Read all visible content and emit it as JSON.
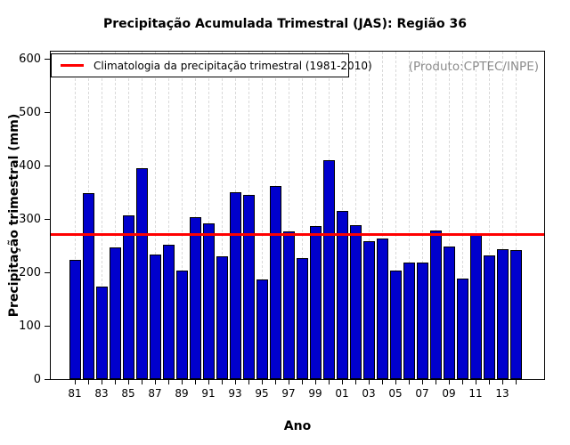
{
  "chart_data": {
    "type": "bar",
    "title": "Precipitação Acumulada Trimestral (JAS): Região 36",
    "xlabel": "Ano",
    "ylabel": "Precipitação trimestral (mm)",
    "annotation": "(Produto:CPTEC/INPE)",
    "legend": [
      {
        "label": "Climatologia da precipitação trimestral (1981-2010)",
        "color": "#ff0000"
      }
    ],
    "categories": [
      "81",
      "82",
      "83",
      "84",
      "85",
      "86",
      "87",
      "88",
      "89",
      "90",
      "91",
      "92",
      "93",
      "94",
      "95",
      "96",
      "97",
      "98",
      "99",
      "00",
      "01",
      "02",
      "03",
      "04",
      "05",
      "06",
      "07",
      "08",
      "09",
      "10",
      "11",
      "12",
      "13",
      "14"
    ],
    "values": [
      223,
      349,
      173,
      246,
      306,
      395,
      234,
      252,
      204,
      304,
      291,
      230,
      350,
      345,
      187,
      361,
      276,
      226,
      286,
      410,
      315,
      289,
      258,
      264,
      203,
      218,
      219,
      278,
      248,
      189,
      270,
      231,
      244,
      242
    ],
    "climatology_mm": 271,
    "ylim": [
      0,
      600
    ],
    "y_ticks": [
      0,
      100,
      200,
      300,
      400,
      500,
      600
    ],
    "x_tick_label_step": 2,
    "bar_color": "#0000cd",
    "bar_border_color": "#000000",
    "line_color": "#ff0000",
    "grid": "vertical-dashed",
    "grid_color": "#d9d9d9",
    "legend_position": "top-left",
    "annotation_color": "#8c8c8c"
  }
}
